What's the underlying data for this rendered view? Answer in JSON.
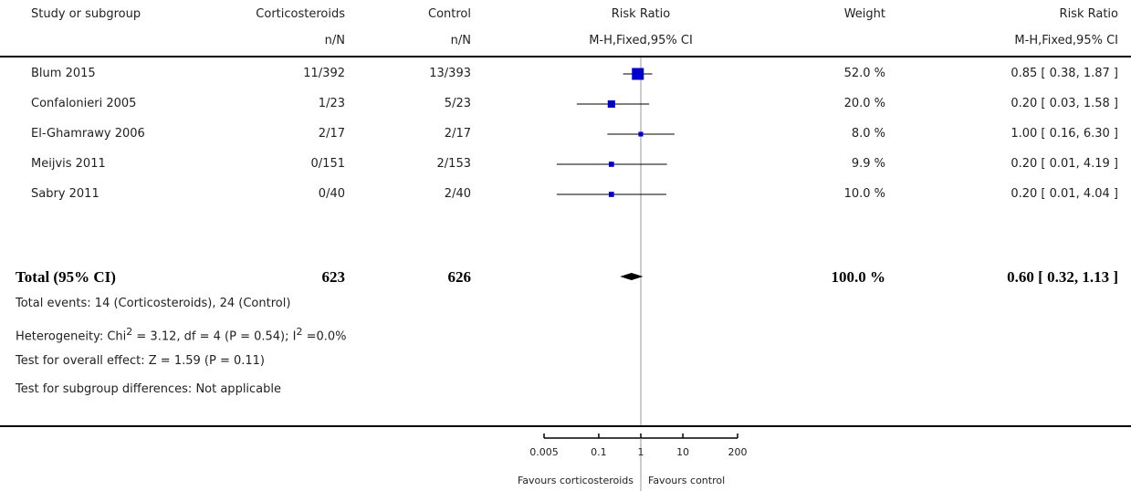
{
  "header": {
    "study": "Study or subgroup",
    "treatment": "Corticosteroids",
    "treatment_sub": "n/N",
    "control": "Control",
    "control_sub": "n/N",
    "effect": "Risk Ratio",
    "effect_sub": "M-H,Fixed,95% CI",
    "weight": "Weight",
    "ratio": "Risk Ratio",
    "ratio_sub": "M-H,Fixed,95% CI"
  },
  "total": {
    "label": "Total (95% CI)",
    "treatment_n": "623",
    "control_n": "626",
    "weight": "100.0 %",
    "ci_text": "0.60 [ 0.32, 1.13 ]"
  },
  "footnotes": {
    "events": "Total events: 14 (Corticosteroids), 24 (Control)",
    "heterogeneity_prefix": "Heterogeneity: Chi",
    "heterogeneity_mid": " = 3.12, df = 4 (P = 0.54); I",
    "heterogeneity_suffix": " =0.0%",
    "superscript": "2",
    "overall": "Test for overall effect: Z = 1.59 (P = 0.11)",
    "subgroup": "Test for subgroup differences: Not applicable"
  },
  "axis": {
    "favours_left": "Favours corticosteroids",
    "favours_right": "Favours control"
  },
  "chart_data": {
    "type": "forest",
    "scale": "log",
    "xlim": [
      0.005,
      200
    ],
    "null_line": 1,
    "ticks": [
      {
        "value": 0.005,
        "label": "0.005"
      },
      {
        "value": 0.1,
        "label": "0.1"
      },
      {
        "value": 1,
        "label": "1"
      },
      {
        "value": 10,
        "label": "10"
      },
      {
        "value": 200,
        "label": "200"
      }
    ],
    "studies": [
      {
        "name": "Blum 2015",
        "treatment": "11/392",
        "control": "13/393",
        "weight": "52.0 %",
        "weight_value": 52.0,
        "rr": 0.85,
        "lo": 0.38,
        "hi": 1.87,
        "ci_text": "0.85 [ 0.38, 1.87 ]"
      },
      {
        "name": "Confalonieri 2005",
        "treatment": "1/23",
        "control": "5/23",
        "weight": "20.0 %",
        "weight_value": 20.0,
        "rr": 0.2,
        "lo": 0.03,
        "hi": 1.58,
        "ci_text": "0.20 [ 0.03, 1.58 ]"
      },
      {
        "name": "El-Ghamrawy 2006",
        "treatment": "2/17",
        "control": "2/17",
        "weight": "8.0 %",
        "weight_value": 8.0,
        "rr": 1.0,
        "lo": 0.16,
        "hi": 6.3,
        "ci_text": "1.00 [ 0.16, 6.30 ]"
      },
      {
        "name": "Meijvis 2011",
        "treatment": "0/151",
        "control": "2/153",
        "weight": "9.9 %",
        "weight_value": 9.9,
        "rr": 0.2,
        "lo": 0.01,
        "hi": 4.19,
        "ci_text": "0.20 [ 0.01, 4.19 ]"
      },
      {
        "name": "Sabry 2011",
        "treatment": "0/40",
        "control": "2/40",
        "weight": "10.0 %",
        "weight_value": 10.0,
        "rr": 0.2,
        "lo": 0.01,
        "hi": 4.04,
        "ci_text": "0.20 [ 0.01, 4.04 ]"
      }
    ],
    "pooled": {
      "rr": 0.6,
      "lo": 0.32,
      "hi": 1.13
    },
    "colors": {
      "marker": "#0000cc",
      "line": "#000000",
      "null_line": "#999999"
    }
  }
}
